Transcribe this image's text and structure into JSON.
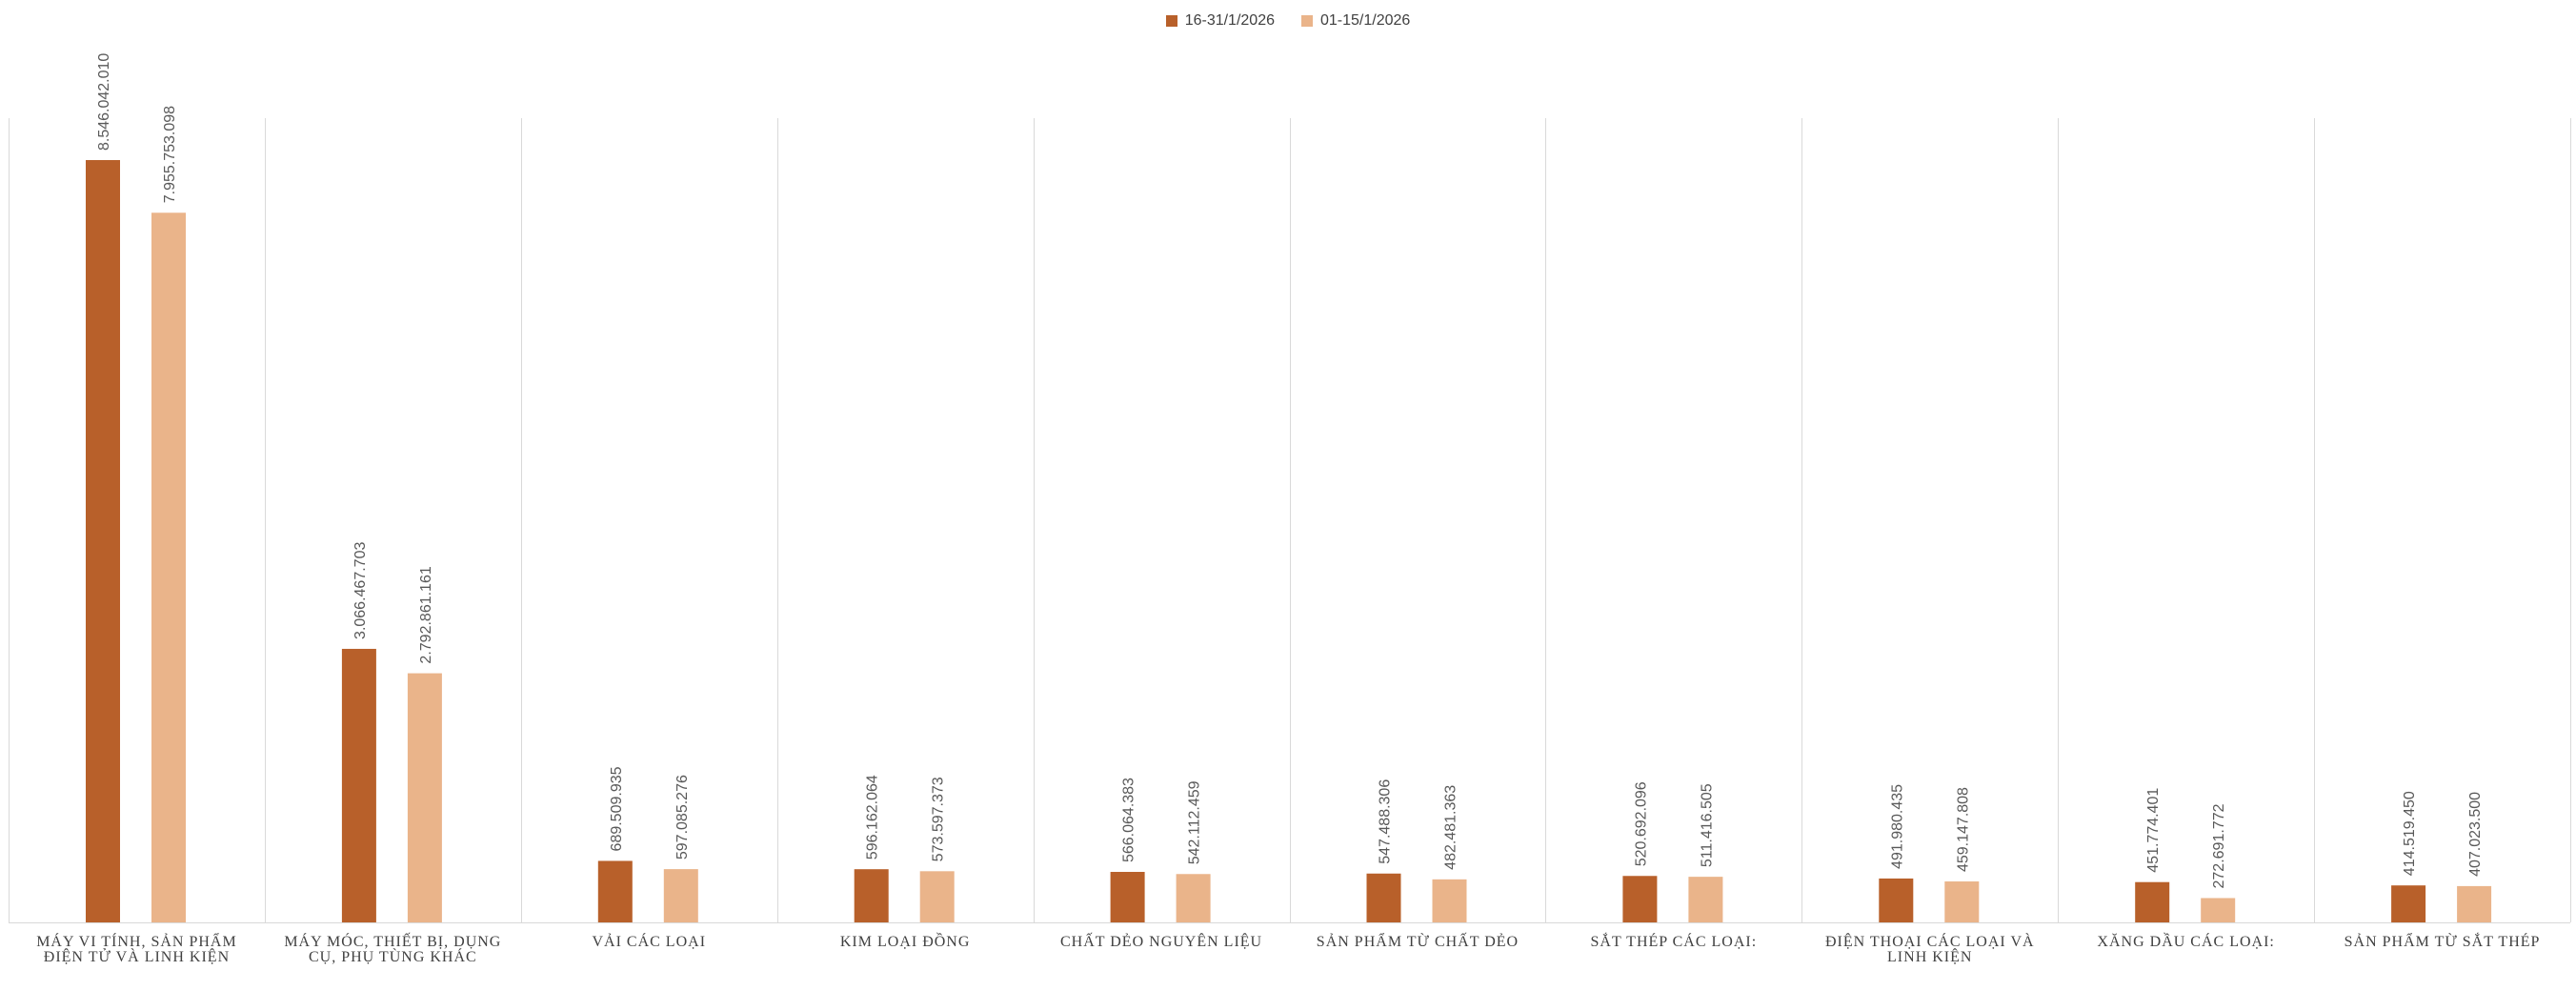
{
  "chart_data": {
    "type": "bar",
    "title": "",
    "xlabel": "",
    "ylabel": "",
    "ylim": [
      0,
      8546042010
    ],
    "legend_position": "top-center",
    "grid": "vertical category separators",
    "colors": {
      "series1": "#B8602A",
      "series2": "#EAB48A",
      "separator": "#D9D9D9",
      "axis": "#D9D9D9"
    },
    "categories": [
      [
        "MÁY VI TÍNH, SẢN PHẨM",
        "ĐIỆN TỬ VÀ LINH KIỆN"
      ],
      [
        "MÁY MÓC, THIẾT BỊ, DỤNG",
        "CỤ, PHỤ TÙNG KHÁC"
      ],
      [
        "VẢI CÁC LOẠI"
      ],
      [
        "KIM LOẠI ĐỒNG"
      ],
      [
        "CHẤT DẺO NGUYÊN LIỆU"
      ],
      [
        "SẢN PHẨM TỪ CHẤT DẺO"
      ],
      [
        "SẮT THÉP CÁC LOẠI:"
      ],
      [
        "ĐIỆN THOẠI CÁC LOẠI VÀ",
        "LINH KIỆN"
      ],
      [
        "XĂNG DẦU CÁC LOẠI:"
      ],
      [
        "SẢN PHẨM TỪ SẮT THÉP"
      ]
    ],
    "series": [
      {
        "name": "16-31/1/2026",
        "values": [
          8546042010,
          3066467703,
          689509935,
          596162064,
          566064383,
          547488306,
          520692096,
          491980435,
          451774401,
          414519450
        ],
        "labels": [
          "8.546.042.010",
          "3.066.467.703",
          "689.509.935",
          "596.162.064",
          "566.064.383",
          "547.488.306",
          "520.692.096",
          "491.980.435",
          "451.774.401",
          "414.519.450"
        ]
      },
      {
        "name": "01-15/1/2026",
        "values": [
          7955753098,
          2792861161,
          597085276,
          573597373,
          542112459,
          482481363,
          511416505,
          459147808,
          272691772,
          407023500
        ],
        "labels": [
          "7.955.753.098",
          "2.792.861.161",
          "597.085.276",
          "573.597.373",
          "542.112.459",
          "482.481.363",
          "511.416.505",
          "459.147.808",
          "272.691.772",
          "407.023.500"
        ]
      }
    ]
  }
}
